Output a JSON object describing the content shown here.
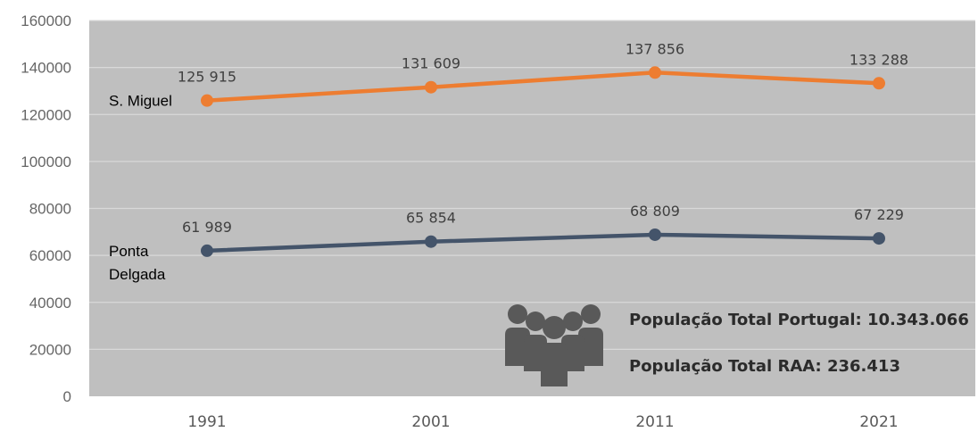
{
  "chart_data": {
    "type": "line",
    "x": [
      "1991",
      "2001",
      "2011",
      "2021"
    ],
    "ylim": [
      0,
      160000
    ],
    "yticks": [
      0,
      20000,
      40000,
      60000,
      80000,
      100000,
      120000,
      140000,
      160000
    ],
    "grid": true,
    "plot_background": "#bfbfbf",
    "series": [
      {
        "name": "S. Miguel",
        "name_lines": [
          "S. Miguel"
        ],
        "values": [
          125915,
          131609,
          137856,
          133288
        ],
        "labels": [
          "125 915",
          "131 609",
          "137 856",
          "133 288"
        ],
        "color": "#ed7d31"
      },
      {
        "name": "Ponta Delgada",
        "name_lines": [
          "Ponta",
          "Delgada"
        ],
        "values": [
          61989,
          65854,
          68809,
          67229
        ],
        "labels": [
          "61 989",
          "65 854",
          "68 809",
          "67 229"
        ],
        "color": "#44546a"
      }
    ],
    "annotations": [
      "População  Total Portugal: 10.343.066",
      "População  Total RAA: 236.413"
    ],
    "annotation_icon": "people-group-icon",
    "icon_color": "#595959"
  }
}
